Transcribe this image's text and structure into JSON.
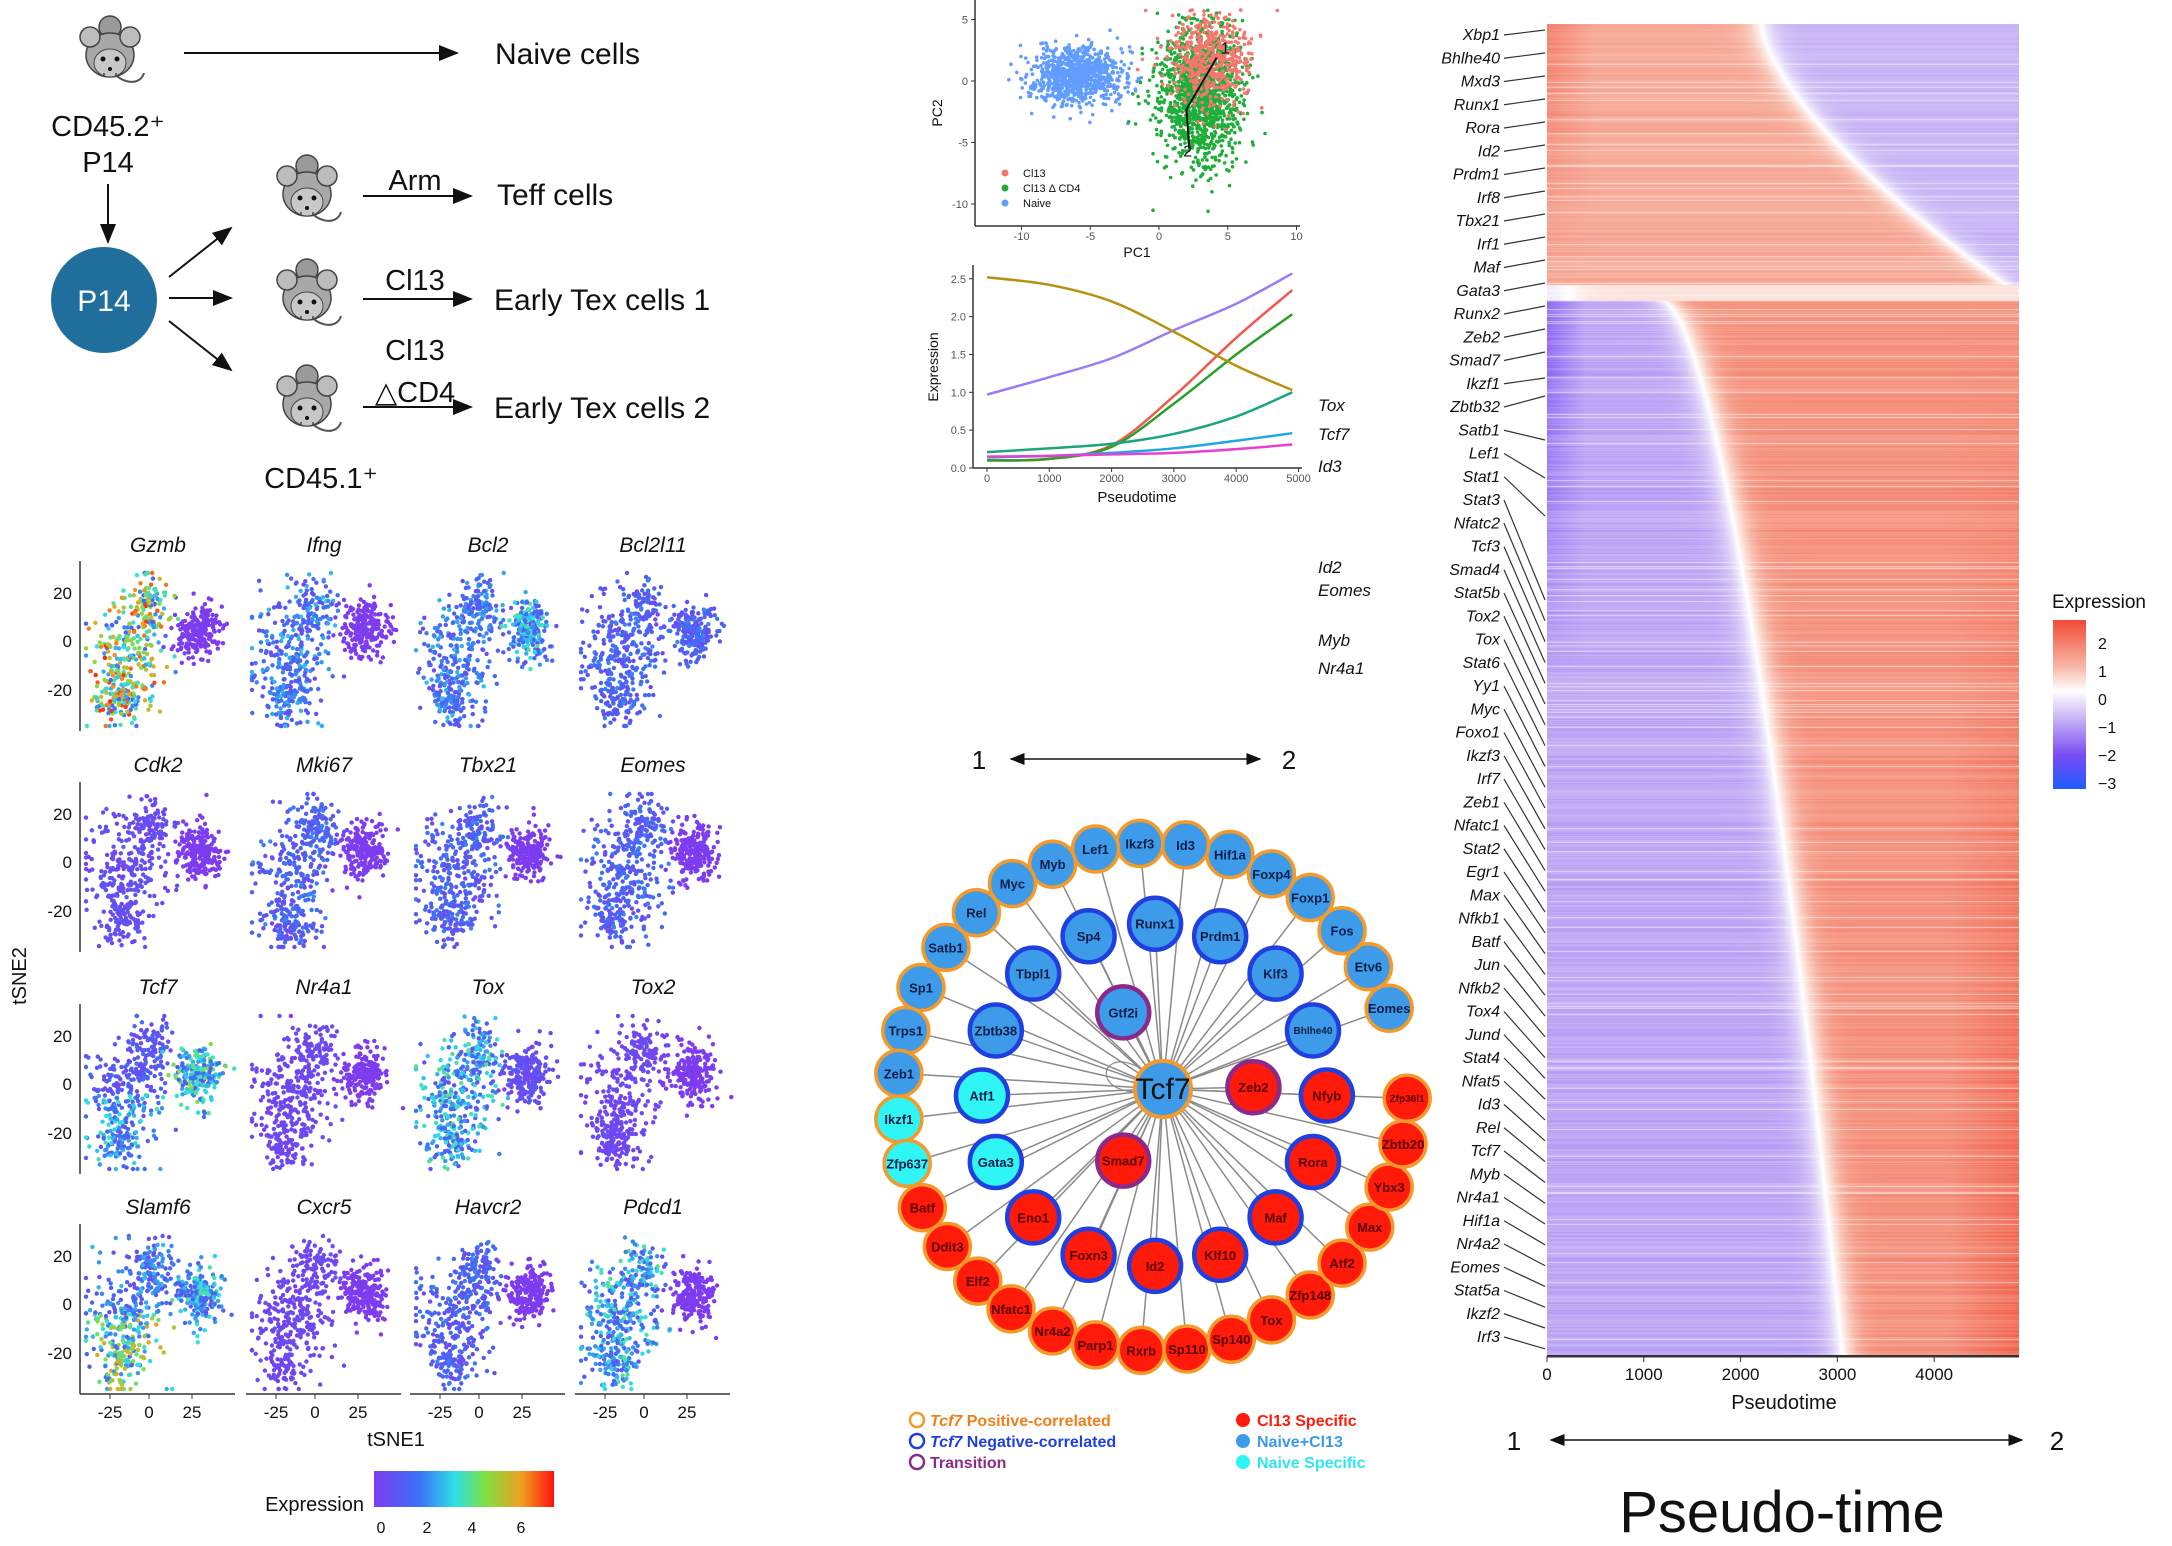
{
  "schematic": {
    "naive": "Naive cells",
    "donor": "CD45.2⁺",
    "p14_label": "P14",
    "p14_circle": "P14",
    "arm": "Arm",
    "teff": "Teff cells",
    "cl13": "Cl13",
    "early1": "Early Tex cells 1",
    "cl13b": "Cl13",
    "dcd4": "△CD4",
    "early2": "Early Tex cells 2",
    "recipient": "CD45.1⁺",
    "circle_color": "#1f6e9c"
  },
  "tsne": {
    "xlabel": "tSNE1",
    "ylabel": "tSNE2",
    "xticks": [
      "-25",
      "0",
      "25"
    ],
    "yticks": [
      "20",
      "0",
      "-20"
    ],
    "colorbar": {
      "label": "Expression",
      "ticks": [
        "0",
        "2",
        "4",
        "6"
      ]
    },
    "genes": [
      {
        "name": "Gzmb",
        "left": 4,
        "right": 0
      },
      {
        "name": "Ifng",
        "left": 1.6,
        "right": 0
      },
      {
        "name": "Bcl2",
        "left": 1.6,
        "right": 2.2
      },
      {
        "name": "Bcl2l11",
        "left": 1.2,
        "right": 1.2
      },
      {
        "name": "Cdk2",
        "left": 0.6,
        "right": 0
      },
      {
        "name": "Mki67",
        "left": 1.2,
        "right": 0
      },
      {
        "name": "Tbx21",
        "left": 1.2,
        "right": 0
      },
      {
        "name": "Eomes",
        "left": 1.2,
        "right": 0
      },
      {
        "name": "Tcf7",
        "left": 1.6,
        "right": 2.6
      },
      {
        "name": "Nr4a1",
        "left": 0.4,
        "right": 0
      },
      {
        "name": "Tox",
        "left": 2.2,
        "right": 0.6
      },
      {
        "name": "Tox2",
        "left": 0.4,
        "right": 0
      },
      {
        "name": "Slamf6",
        "left": 2.6,
        "right": 2.2
      },
      {
        "name": "Cxcr5",
        "left": 0.4,
        "right": 0
      },
      {
        "name": "Havcr2",
        "left": 1.2,
        "right": 0
      },
      {
        "name": "Pdcd1",
        "left": 2.2,
        "right": 0
      }
    ]
  },
  "chart_data": [
    {
      "type": "scatter",
      "xlabel": "PC1",
      "ylabel": "PC2",
      "xlim": [
        -13,
        10
      ],
      "ylim": [
        -11.5,
        6
      ],
      "xticks": [
        -10,
        -5,
        0,
        5,
        10
      ],
      "yticks": [
        5,
        0,
        -5,
        -10
      ],
      "legend": "bottom-left",
      "series": [
        {
          "name": "Cl13",
          "color": "#f8766d",
          "center": [
            3.8,
            1.8
          ],
          "spread": [
            1.6,
            2.0
          ]
        },
        {
          "name": "Cl13 Δ CD4",
          "color": "#1fae3a",
          "center": [
            3.0,
            -1.0
          ],
          "spread": [
            1.5,
            2.8
          ]
        },
        {
          "name": "Naive",
          "color": "#619cff",
          "center": [
            -6.0,
            0.5
          ],
          "spread": [
            1.7,
            1.2
          ]
        }
      ],
      "trajectory": {
        "points": [
          [
            4.2,
            1.9
          ],
          [
            2.0,
            -2.3
          ],
          [
            2.2,
            -5.5
          ]
        ],
        "start_label": "1",
        "end_label": "2"
      }
    },
    {
      "type": "line",
      "xlabel": "Pseudotime",
      "ylabel": "Expression",
      "xlim": [
        0,
        5000
      ],
      "ylim": [
        0,
        2.6
      ],
      "xticks": [
        0,
        1000,
        2000,
        3000,
        4000,
        5000
      ],
      "yticks": [
        0.0,
        0.5,
        1.0,
        1.5,
        2.0,
        2.5
      ],
      "x": [
        0,
        1000,
        2000,
        3000,
        4000,
        4900
      ],
      "series": [
        {
          "name": "Tox",
          "color": "#9b7bf5",
          "values": [
            0.97,
            1.2,
            1.45,
            1.82,
            2.17,
            2.57
          ]
        },
        {
          "name": "Tcf7",
          "color": "#f0584a",
          "values": [
            0.1,
            0.12,
            0.3,
            0.95,
            1.72,
            2.35
          ]
        },
        {
          "name": "Id3",
          "color": "#2aa02a",
          "values": [
            0.1,
            0.12,
            0.28,
            0.85,
            1.5,
            2.03
          ]
        },
        {
          "name": "Id2",
          "color": "#b8900e",
          "values": [
            2.52,
            2.42,
            2.2,
            1.8,
            1.35,
            1.03
          ]
        },
        {
          "name": "Eomes",
          "color": "#1aa57e",
          "values": [
            0.21,
            0.26,
            0.32,
            0.45,
            0.68,
            1.0
          ]
        },
        {
          "name": "Myb",
          "color": "#1fa6e8",
          "values": [
            0.14,
            0.16,
            0.2,
            0.26,
            0.36,
            0.46
          ]
        },
        {
          "name": "Nr4a1",
          "color": "#e83fd0",
          "values": [
            0.15,
            0.16,
            0.18,
            0.2,
            0.25,
            0.31
          ]
        }
      ],
      "start_label": "1",
      "end_label": "2"
    },
    {
      "type": "heatmap",
      "xlabel": "Pseudotime",
      "xlim": [
        0,
        4900
      ],
      "xticks": [
        0,
        1000,
        2000,
        3000,
        4000
      ],
      "colorbar": {
        "title": "Expression",
        "ticks": [
          "2",
          "1",
          "0",
          "−1",
          "−2",
          "−3"
        ],
        "low": "#2f5bff",
        "mid": "#ffffff",
        "high": "#f24a35"
      },
      "row_labels": [
        "Xbp1",
        "Bhlhe40",
        "Mxd3",
        "Runx1",
        "Rora",
        "Id2",
        "Prdm1",
        "Irf8",
        "Tbx21",
        "Irf1",
        "Maf",
        "Gata3",
        "Runx2",
        "Zeb2",
        "Smad7",
        "Ikzf1",
        "Zbtb32",
        "Satb1",
        "Lef1",
        "Stat1",
        "Stat3",
        "Nfatc2",
        "Tcf3",
        "Smad4",
        "Stat5b",
        "Tox2",
        "Tox",
        "Stat6",
        "Yy1",
        "Myc",
        "Foxo1",
        "Ikzf3",
        "Irf7",
        "Zeb1",
        "Nfatc1",
        "Stat2",
        "Egr1",
        "Max",
        "Nfkb1",
        "Batf",
        "Jun",
        "Nfkb2",
        "Tox4",
        "Jund",
        "Stat4",
        "Nfat5",
        "Id3",
        "Rel",
        "Tcf7",
        "Myb",
        "Nr4a1",
        "Hif1a",
        "Nr4a2",
        "Eomes",
        "Stat5a",
        "Ikzf2",
        "Irf3"
      ],
      "start_label": "1",
      "end_label": "2",
      "caption": "Pseudo-time"
    }
  ],
  "network": {
    "hub": "Tcf7",
    "colors": {
      "positive": "#f39a2b",
      "negative": "#1f3fe0",
      "transition": "#8b2a8b",
      "cl13": "#ff1a0a",
      "naive_cl13": "#3d9be9",
      "naive": "#2ff5f5"
    },
    "nodes": [
      {
        "name": "Eomes",
        "fill": "naive_cl13",
        "border": "positive"
      },
      {
        "name": "Etv6",
        "fill": "naive_cl13",
        "border": "positive"
      },
      {
        "name": "Fos",
        "fill": "naive_cl13",
        "border": "positive"
      },
      {
        "name": "Foxp1",
        "fill": "naive_cl13",
        "border": "positive"
      },
      {
        "name": "Foxp4",
        "fill": "naive_cl13",
        "border": "positive"
      },
      {
        "name": "Hif1a",
        "fill": "naive_cl13",
        "border": "positive"
      },
      {
        "name": "Id3",
        "fill": "naive_cl13",
        "border": "positive"
      },
      {
        "name": "Ikzf3",
        "fill": "naive_cl13",
        "border": "positive"
      },
      {
        "name": "Lef1",
        "fill": "naive_cl13",
        "border": "positive"
      },
      {
        "name": "Myb",
        "fill": "naive_cl13",
        "border": "positive"
      },
      {
        "name": "Myc",
        "fill": "naive_cl13",
        "border": "positive"
      },
      {
        "name": "Rel",
        "fill": "naive_cl13",
        "border": "positive"
      },
      {
        "name": "Satb1",
        "fill": "naive_cl13",
        "border": "positive"
      },
      {
        "name": "Sp1",
        "fill": "naive_cl13",
        "border": "positive"
      },
      {
        "name": "Trps1",
        "fill": "naive_cl13",
        "border": "positive"
      },
      {
        "name": "Zeb1",
        "fill": "naive_cl13",
        "border": "positive"
      },
      {
        "name": "Ikzf1",
        "fill": "naive",
        "border": "positive"
      },
      {
        "name": "Zfp637",
        "fill": "naive",
        "border": "positive"
      },
      {
        "name": "Batf",
        "fill": "cl13",
        "border": "positive"
      },
      {
        "name": "Ddit3",
        "fill": "cl13",
        "border": "positive"
      },
      {
        "name": "Elf2",
        "fill": "cl13",
        "border": "positive"
      },
      {
        "name": "Nfatc1",
        "fill": "cl13",
        "border": "positive"
      },
      {
        "name": "Nr4a2",
        "fill": "cl13",
        "border": "positive"
      },
      {
        "name": "Parp1",
        "fill": "cl13",
        "border": "positive"
      },
      {
        "name": "Rxrb",
        "fill": "cl13",
        "border": "positive"
      },
      {
        "name": "Sp110",
        "fill": "cl13",
        "border": "positive"
      },
      {
        "name": "Sp140",
        "fill": "cl13",
        "border": "positive"
      },
      {
        "name": "Tox",
        "fill": "cl13",
        "border": "positive"
      },
      {
        "name": "Zfp148",
        "fill": "cl13",
        "border": "positive"
      },
      {
        "name": "Atf2",
        "fill": "cl13",
        "border": "positive"
      },
      {
        "name": "Max",
        "fill": "cl13",
        "border": "positive"
      },
      {
        "name": "Ybx3",
        "fill": "cl13",
        "border": "positive"
      },
      {
        "name": "Zbtb20",
        "fill": "cl13",
        "border": "positive"
      },
      {
        "name": "Zfp36l1",
        "fill": "cl13",
        "border": "positive"
      },
      {
        "name": "Sp4",
        "fill": "naive_cl13",
        "border": "negative"
      },
      {
        "name": "Runx1",
        "fill": "naive_cl13",
        "border": "negative"
      },
      {
        "name": "Prdm1",
        "fill": "naive_cl13",
        "border": "negative"
      },
      {
        "name": "Klf3",
        "fill": "naive_cl13",
        "border": "negative"
      },
      {
        "name": "Bhlhe40",
        "fill": "naive_cl13",
        "border": "negative"
      },
      {
        "name": "Tbpl1",
        "fill": "naive_cl13",
        "border": "negative"
      },
      {
        "name": "Zbtb38",
        "fill": "naive_cl13",
        "border": "negative"
      },
      {
        "name": "Gtf2i",
        "fill": "naive_cl13",
        "border": "transition"
      },
      {
        "name": "Atf1",
        "fill": "naive",
        "border": "negative"
      },
      {
        "name": "Gata3",
        "fill": "naive",
        "border": "negative"
      },
      {
        "name": "Zeb2",
        "fill": "cl13",
        "border": "transition"
      },
      {
        "name": "Nfyb",
        "fill": "cl13",
        "border": "negative"
      },
      {
        "name": "Rora",
        "fill": "cl13",
        "border": "negative"
      },
      {
        "name": "Maf",
        "fill": "cl13",
        "border": "negative"
      },
      {
        "name": "Klf10",
        "fill": "cl13",
        "border": "negative"
      },
      {
        "name": "Id2",
        "fill": "cl13",
        "border": "negative"
      },
      {
        "name": "Foxn3",
        "fill": "cl13",
        "border": "negative"
      },
      {
        "name": "Eno1",
        "fill": "cl13",
        "border": "negative"
      },
      {
        "name": "Smad7",
        "fill": "cl13",
        "border": "transition"
      }
    ],
    "legend": {
      "pos_gene": "Tcf7",
      "pos": " Positive-correlated",
      "neg_gene": "Tcf7",
      "neg": " Negative-correlated",
      "transition": "Transition",
      "cl13": "Cl13 Specific",
      "naive_cl13": "Naive+Cl13",
      "naive": "Naive Specific"
    }
  }
}
